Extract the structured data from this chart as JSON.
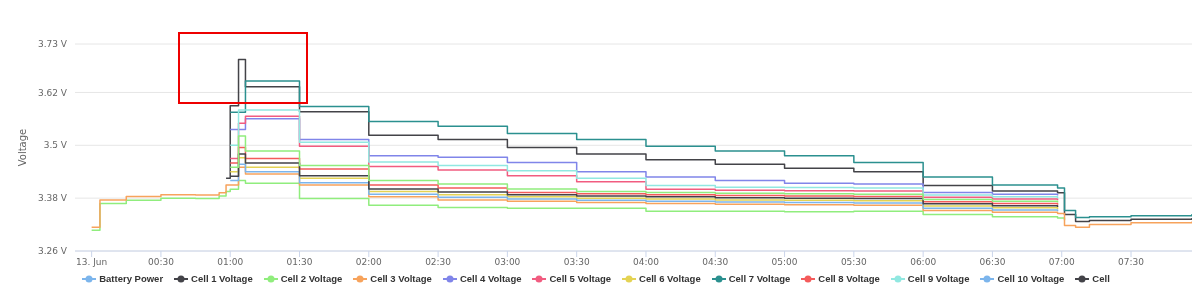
{
  "chart_data": {
    "type": "step",
    "ylabel": "Voltage",
    "x": [
      0,
      0.06,
      0.25,
      0.5,
      0.75,
      0.92,
      0.97,
      1.0,
      1.06,
      1.11,
      1.5,
      2,
      2.5,
      3,
      3.5,
      4,
      4.5,
      5,
      5.5,
      6,
      6.5,
      6.97,
      7.02,
      7.1,
      7.2,
      7.5,
      7.94
    ],
    "series": [
      {
        "name": "Battery Power",
        "color": "#7cb5ec",
        "values": [
          null,
          null,
          null,
          null,
          null,
          null,
          null,
          null,
          null,
          null,
          null,
          null,
          null,
          null,
          null,
          null,
          null,
          null,
          null,
          null,
          null,
          null,
          null,
          null,
          null,
          null,
          null
        ]
      },
      {
        "name": "Cell 1 Voltage",
        "color": "#434348",
        "values": [
          null,
          null,
          null,
          null,
          null,
          null,
          3.425,
          3.59,
          3.695,
          3.633,
          3.576,
          3.523,
          3.513,
          3.495,
          3.48,
          3.467,
          3.457,
          3.448,
          3.44,
          3.409,
          3.396,
          3.392,
          3.343,
          3.327,
          3.329,
          3.332,
          3.335
        ]
      },
      {
        "name": "Cell 2 Voltage",
        "color": "#90ed7d",
        "values": [
          3.307,
          3.368,
          3.375,
          3.38,
          3.379,
          3.385,
          3.395,
          3.4,
          3.42,
          3.414,
          3.379,
          3.364,
          3.359,
          3.357,
          3.357,
          3.35,
          3.35,
          3.349,
          3.35,
          3.343,
          3.338,
          3.335,
          3.33,
          null,
          null,
          null,
          null
        ]
      },
      {
        "name": "Cell 3 Voltage",
        "color": "#f7a35c",
        "values": [
          3.314,
          3.376,
          3.384,
          3.388,
          3.387,
          3.392,
          3.41,
          3.41,
          3.45,
          3.435,
          3.41,
          3.383,
          3.376,
          3.373,
          3.37,
          3.368,
          3.366,
          3.365,
          3.364,
          3.352,
          3.348,
          3.345,
          3.318,
          3.314,
          3.32,
          3.324,
          3.327
        ]
      },
      {
        "name": "Cell 4 Voltage",
        "color": "#8085e9",
        "values": [
          null,
          null,
          null,
          null,
          null,
          null,
          null,
          3.536,
          3.536,
          3.56,
          3.513,
          3.476,
          3.473,
          3.461,
          3.44,
          3.428,
          3.42,
          3.414,
          3.412,
          3.393,
          3.389,
          3.386,
          null,
          null,
          null,
          null,
          null
        ]
      },
      {
        "name": "Cell 5 Voltage",
        "color": "#f15c80",
        "values": [
          null,
          null,
          null,
          null,
          null,
          null,
          null,
          3.47,
          3.55,
          3.566,
          3.498,
          3.452,
          3.444,
          3.431,
          3.417,
          3.4,
          3.398,
          3.397,
          3.396,
          3.382,
          3.378,
          3.375,
          null,
          null,
          null,
          null,
          null
        ]
      },
      {
        "name": "Cell 6 Voltage",
        "color": "#e4d354",
        "values": [
          null,
          null,
          null,
          null,
          null,
          null,
          null,
          3.44,
          3.472,
          3.45,
          3.425,
          3.395,
          3.388,
          3.383,
          3.38,
          3.378,
          3.376,
          3.375,
          3.374,
          3.362,
          3.358,
          3.355,
          null,
          null,
          null,
          null,
          null
        ]
      },
      {
        "name": "Cell 7 Voltage",
        "color": "#2b908f",
        "values": [
          null,
          null,
          null,
          null,
          null,
          null,
          null,
          3.575,
          3.575,
          3.646,
          3.588,
          3.554,
          3.543,
          3.527,
          3.513,
          3.498,
          3.487,
          3.476,
          3.461,
          3.428,
          3.41,
          3.403,
          3.352,
          3.336,
          3.338,
          3.34,
          3.344
        ]
      },
      {
        "name": "Cell 8 Voltage",
        "color": "#f45b5b",
        "values": [
          null,
          null,
          null,
          null,
          null,
          null,
          null,
          3.46,
          3.495,
          3.47,
          3.446,
          3.41,
          3.403,
          3.393,
          3.39,
          3.388,
          3.386,
          3.385,
          3.384,
          3.372,
          3.368,
          3.365,
          null,
          null,
          null,
          null,
          null
        ]
      },
      {
        "name": "Cell 9 Voltage",
        "color": "#91e8e1",
        "values": [
          null,
          null,
          null,
          null,
          null,
          null,
          null,
          3.5,
          3.58,
          3.58,
          3.507,
          3.462,
          3.454,
          3.442,
          3.425,
          3.409,
          3.405,
          3.404,
          3.403,
          3.387,
          3.383,
          3.38,
          null,
          null,
          null,
          null,
          null
        ]
      },
      {
        "name": "Cell 10 Voltage",
        "color": "#7cb5ec",
        "values": [
          null,
          null,
          null,
          null,
          null,
          null,
          null,
          3.42,
          3.457,
          3.44,
          3.415,
          3.389,
          3.382,
          3.378,
          3.375,
          3.373,
          3.371,
          3.37,
          3.369,
          3.357,
          3.353,
          3.35,
          null,
          null,
          null,
          null,
          null
        ]
      },
      {
        "name": "Cell",
        "color": "#434348",
        "values": [
          null,
          null,
          null,
          null,
          null,
          null,
          null,
          3.43,
          3.48,
          3.46,
          3.431,
          3.401,
          3.394,
          3.388,
          3.385,
          3.383,
          3.381,
          3.38,
          3.379,
          3.367,
          3.363,
          3.36,
          null,
          null,
          null,
          null,
          null
        ]
      },
      {
        "color": "#90ed7d",
        "values": [
          null,
          null,
          null,
          null,
          null,
          null,
          null,
          3.45,
          3.521,
          3.487,
          3.454,
          3.42,
          3.412,
          3.401,
          3.395,
          3.393,
          3.391,
          3.39,
          3.389,
          3.377,
          3.373,
          3.37,
          null,
          null,
          null,
          null,
          null
        ]
      }
    ],
    "xlim": [
      -0.12,
      7.94
    ],
    "xticks": [
      {
        "value": 0,
        "label": "13. Jun"
      },
      {
        "value": 0.5,
        "label": "00:30"
      },
      {
        "value": 1,
        "label": "01:00"
      },
      {
        "value": 1.5,
        "label": "01:30"
      },
      {
        "value": 2,
        "label": "02:00"
      },
      {
        "value": 2.5,
        "label": "02:30"
      },
      {
        "value": 3,
        "label": "03:00"
      },
      {
        "value": 3.5,
        "label": "03:30"
      },
      {
        "value": 4,
        "label": "04:00"
      },
      {
        "value": 4.5,
        "label": "04:30"
      },
      {
        "value": 5,
        "label": "05:00"
      },
      {
        "value": 5.5,
        "label": "05:30"
      },
      {
        "value": 6,
        "label": "06:00"
      },
      {
        "value": 6.5,
        "label": "06:30"
      },
      {
        "value": 7,
        "label": "07:00"
      },
      {
        "value": 7.5,
        "label": "07:30"
      }
    ],
    "ylim": [
      3.26,
      3.73
    ],
    "yticks": [
      {
        "value": 3.26,
        "label": "3.26 V"
      },
      {
        "value": 3.38,
        "label": "3.38 V"
      },
      {
        "value": 3.5,
        "label": "3.5 V"
      },
      {
        "value": 3.62,
        "label": "3.62 V"
      },
      {
        "value": 3.73,
        "label": "3.73 V"
      }
    ],
    "grid": "y",
    "legend": "bottom"
  }
}
